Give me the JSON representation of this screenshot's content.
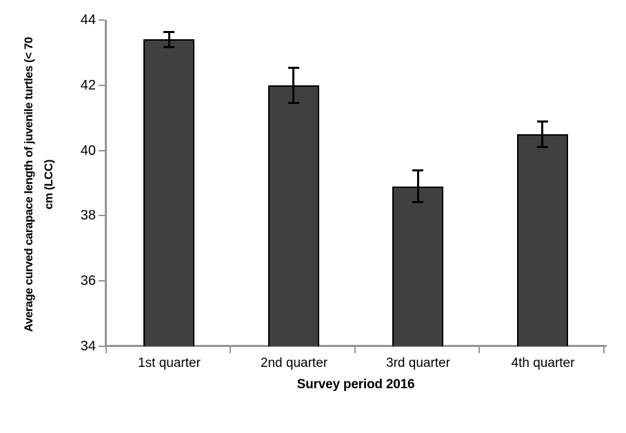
{
  "chart_data": {
    "type": "bar",
    "title": "",
    "categories": [
      "1st quarter",
      "2nd quarter",
      "3rd quarter",
      "4th quarter"
    ],
    "values": [
      43.4,
      42.0,
      38.9,
      40.5
    ],
    "error_bars": [
      0.25,
      0.55,
      0.5,
      0.4
    ],
    "xlabel": "Survey period 2016",
    "ylabel": "Average curved carapace length of juvenile turtles (< 70 cm (LCC)",
    "ylabel_line1": "Average curved carapace length of juvenile turtles (< 70",
    "ylabel_line2": "cm (LCC)",
    "ylim": [
      34,
      44
    ],
    "yticks": [
      34,
      36,
      38,
      40,
      42,
      44
    ],
    "grid": false,
    "legend": null,
    "colors": {
      "bar_fill": "#404040",
      "bar_border": "#000000",
      "error_bar": "#000000",
      "axis": "#949494",
      "text": "#000000",
      "background": "#ffffff"
    }
  }
}
